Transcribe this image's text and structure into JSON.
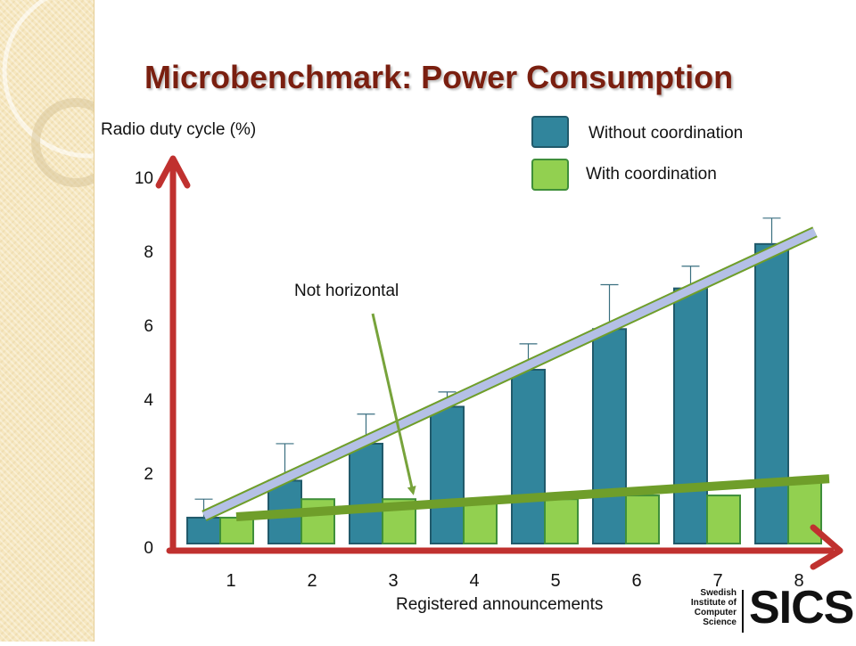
{
  "slide": {
    "title": "Microbenchmark: Power Consumption",
    "annotation": "Not horizontal",
    "logo": {
      "small_text": [
        "Swedish",
        "Institute of",
        "Computer",
        "Science"
      ],
      "big_text": "SICS"
    }
  },
  "chart_data": {
    "type": "bar",
    "ylabel": "Radio duty cycle (%)",
    "xlabel": "Registered announcements",
    "categories": [
      "1",
      "2",
      "3",
      "4",
      "5",
      "6",
      "7",
      "8"
    ],
    "yticks": [
      "0",
      "2",
      "4",
      "6",
      "8",
      "10"
    ],
    "ylim": [
      0,
      10
    ],
    "grid": false,
    "legend_position": "top-right",
    "series": [
      {
        "name": "Without coordination",
        "color": "#31859c",
        "values": [
          0.7,
          1.7,
          2.7,
          3.7,
          4.7,
          5.8,
          6.9,
          8.1
        ],
        "error_upper": [
          1.2,
          2.7,
          3.5,
          4.1,
          5.4,
          7.0,
          7.5,
          8.8
        ]
      },
      {
        "name": "With coordination",
        "color": "#92d050",
        "values": [
          0.7,
          1.2,
          1.2,
          1.2,
          1.2,
          1.3,
          1.3,
          1.7
        ]
      }
    ],
    "trendlines": [
      {
        "series": "Without coordination",
        "color": "#b4c0e6",
        "from": [
          1,
          0.7
        ],
        "to": [
          8,
          8.5
        ]
      },
      {
        "series": "With coordination",
        "color": "#6f9e2a",
        "from": [
          1,
          0.7
        ],
        "to": [
          8,
          1.8
        ]
      }
    ],
    "axis_color": "#c0312f"
  }
}
